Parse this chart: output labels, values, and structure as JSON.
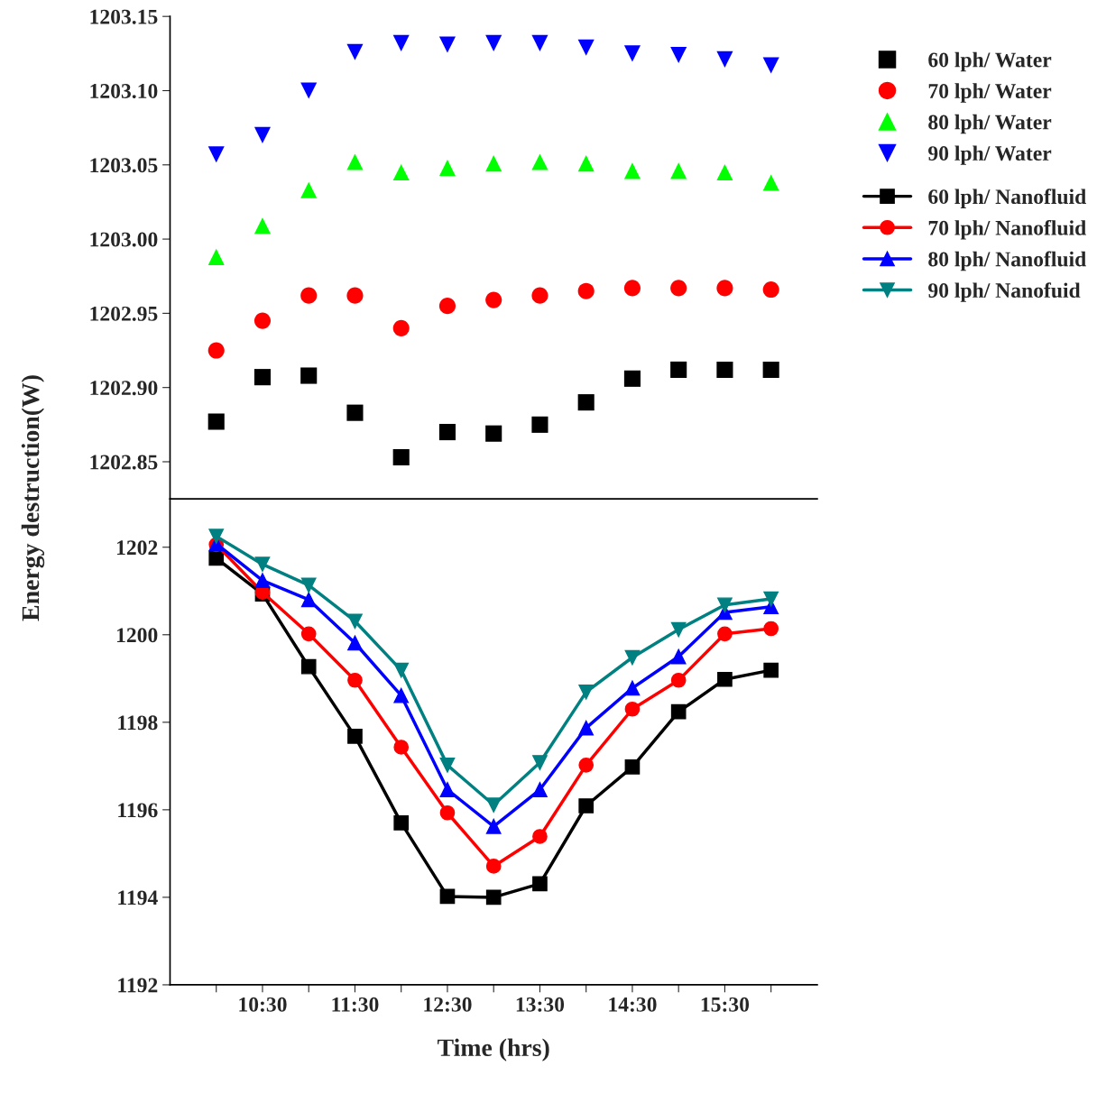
{
  "chart_data": [
    {
      "type": "scatter",
      "ylabel": "Energy destruction(W)",
      "x": [
        10,
        10.5,
        11,
        11.5,
        12,
        12.5,
        13,
        13.5,
        14,
        14.5,
        15,
        15.5,
        16
      ],
      "xlim": [
        9.5,
        16.5
      ],
      "ylim": [
        1202.825,
        1203.15
      ],
      "yticks": [
        1202.85,
        {
          "value": 1202.9,
          "label": "1202.90"
        },
        1202.95,
        {
          "value": 1203.0,
          "label": "1203.00"
        },
        1203.05,
        {
          "value": 1203.1,
          "label": "1203.10"
        },
        1203.15
      ],
      "tick_labels": "y",
      "legend": "top right",
      "grid": false,
      "series": [
        {
          "name": "60 lph/ Water",
          "color": "#000000",
          "marker": "square",
          "values": [
            1202.877,
            1202.907,
            1202.908,
            1202.883,
            1202.853,
            1202.87,
            1202.869,
            1202.875,
            1202.89,
            1202.906,
            1202.912,
            1202.912,
            1202.912
          ]
        },
        {
          "name": "70 lph/ Water",
          "color": "#ff0000",
          "marker": "circle",
          "values": [
            1202.925,
            1202.945,
            1202.962,
            1202.962,
            1202.94,
            1202.955,
            1202.959,
            1202.962,
            1202.965,
            1202.967,
            1202.967,
            1202.967,
            1202.966
          ]
        },
        {
          "name": "80 lph/ Water",
          "color": "#00ff00",
          "marker": "triangle",
          "values": [
            1202.988,
            1203.009,
            1203.033,
            1203.052,
            1203.045,
            1203.048,
            1203.051,
            1203.052,
            1203.051,
            1203.046,
            1203.046,
            1203.045,
            1203.038
          ]
        },
        {
          "name": "90 lph/ Water",
          "color": "#0000ff",
          "marker": "triangle_down",
          "values": [
            1203.057,
            1203.07,
            1203.1,
            1203.126,
            1203.132,
            1203.131,
            1203.132,
            1203.132,
            1203.129,
            1203.125,
            1203.124,
            1203.121,
            1203.117
          ]
        }
      ]
    },
    {
      "type": "line",
      "xlabel": "Time (hrs)",
      "x": [
        10,
        10.5,
        11,
        11.5,
        12,
        12.5,
        13,
        13.5,
        14,
        14.5,
        15,
        15.5,
        16
      ],
      "xlim": [
        9.5,
        16.5
      ],
      "xticks": [
        {
          "value": 10,
          "label": null
        },
        {
          "value": 10.5,
          "label": "10:30"
        },
        {
          "value": 11,
          "label": null
        },
        {
          "value": 11.5,
          "label": "11:30"
        },
        {
          "value": 12,
          "label": null
        },
        {
          "value": 12.5,
          "label": "12:30"
        },
        {
          "value": 13,
          "label": null
        },
        {
          "value": 13.5,
          "label": "13:30"
        },
        {
          "value": 14,
          "label": null
        },
        {
          "value": 14.5,
          "label": "14:30"
        },
        {
          "value": 15,
          "label": null
        },
        {
          "value": 15.5,
          "label": "15:30"
        },
        {
          "value": 16,
          "label": null
        }
      ],
      "ylim": [
        1192,
        1203.1
      ],
      "yticks": [
        1192,
        1194,
        1196,
        1198,
        1200,
        1202
      ],
      "legend": "right",
      "grid": false,
      "line_style": "solid",
      "series": [
        {
          "name": "60 lph/ Nanofluid",
          "color": "#000000",
          "marker": "square",
          "values": [
            1201.75,
            1200.93,
            1199.27,
            1197.68,
            1195.7,
            1194.02,
            1194.0,
            1194.31,
            1196.09,
            1196.98,
            1198.24,
            1198.98,
            1199.19
          ]
        },
        {
          "name": "70 lph/ Nanofluid",
          "color": "#ff0000",
          "marker": "circle",
          "values": [
            1202.06,
            1200.97,
            1200.02,
            1198.96,
            1197.43,
            1195.93,
            1194.71,
            1195.39,
            1197.02,
            1198.3,
            1198.96,
            1200.02,
            1200.14
          ]
        },
        {
          "name": "80 lph/ Nanofluid",
          "color": "#0000ff",
          "marker": "triangle",
          "values": [
            1202.08,
            1201.24,
            1200.8,
            1199.81,
            1198.61,
            1196.46,
            1195.62,
            1196.46,
            1197.87,
            1198.78,
            1199.5,
            1200.51,
            1200.64
          ]
        },
        {
          "name": "90 lph/ Nanofuid",
          "color": "#008080",
          "marker": "triangle_down",
          "values": [
            1202.25,
            1201.61,
            1201.13,
            1200.31,
            1199.19,
            1197.02,
            1196.11,
            1197.08,
            1198.69,
            1199.48,
            1200.12,
            1200.68,
            1200.82
          ]
        }
      ]
    }
  ]
}
